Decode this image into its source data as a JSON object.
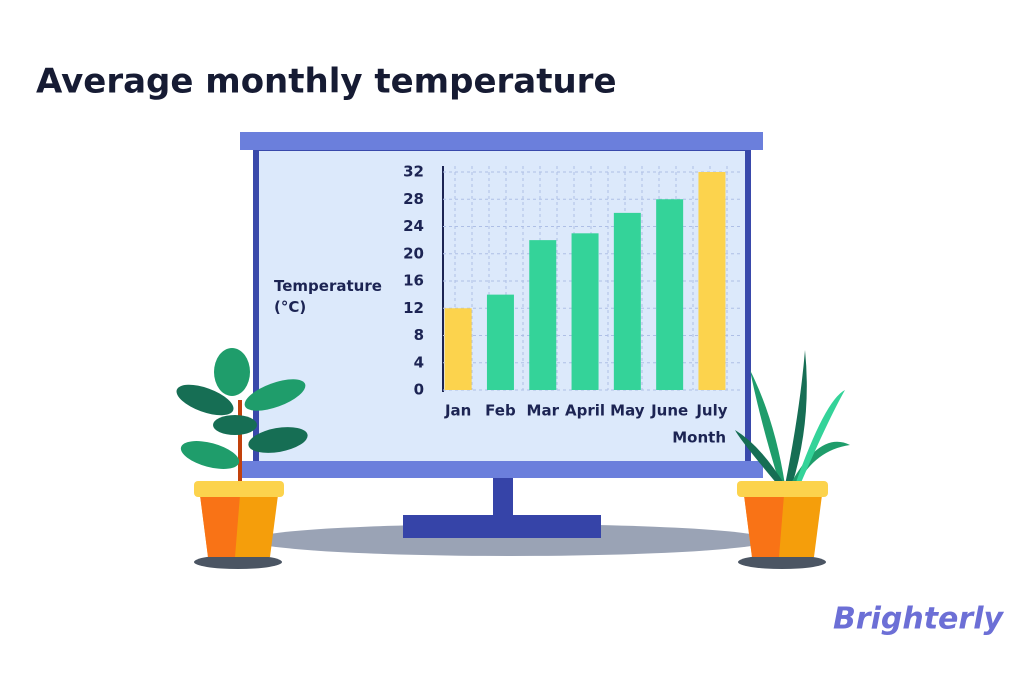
{
  "chart_data": {
    "type": "bar",
    "title": "Average monthly temperature",
    "categories": [
      "Jan",
      "Feb",
      "Mar",
      "April",
      "May",
      "June",
      "July"
    ],
    "values": [
      12,
      14,
      22,
      23,
      26,
      28,
      32
    ],
    "colors": [
      "#fcd34d",
      "#34d399",
      "#34d399",
      "#34d399",
      "#34d399",
      "#34d399",
      "#fcd34d"
    ],
    "ylim": [
      0,
      32
    ],
    "yticks": [
      0,
      4,
      8,
      12,
      16,
      20,
      24,
      28,
      32
    ],
    "grid": true,
    "ylabel": "Temperature (°C)",
    "xlabel": "Month"
  },
  "brand": "Brighterly"
}
